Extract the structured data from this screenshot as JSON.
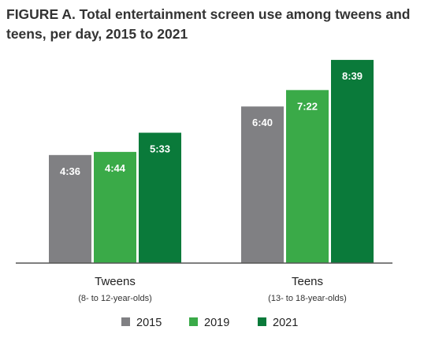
{
  "chart_data": {
    "type": "bar",
    "title": "FIGURE A. Total entertainment screen use among tweens and teens, per day, 2015 to 2021",
    "categories": [
      "Tweens",
      "Teens"
    ],
    "category_sublabels": [
      "(8- to 12-year-olds)",
      "(13- to 18-year-olds)"
    ],
    "series": [
      {
        "name": "2015",
        "color": "#808083",
        "values": [
          276,
          400
        ],
        "labels": [
          "4:36",
          "6:40"
        ]
      },
      {
        "name": "2019",
        "color": "#3aaa48",
        "values": [
          284,
          442
        ],
        "labels": [
          "4:44",
          "7:22"
        ]
      },
      {
        "name": "2021",
        "color": "#0a7a3a",
        "values": [
          333,
          519
        ],
        "labels": [
          "5:33",
          "8:39"
        ]
      }
    ],
    "value_unit": "minutes per day",
    "ylim": [
      0,
      540
    ],
    "legend_position": "bottom",
    "grid": false
  }
}
